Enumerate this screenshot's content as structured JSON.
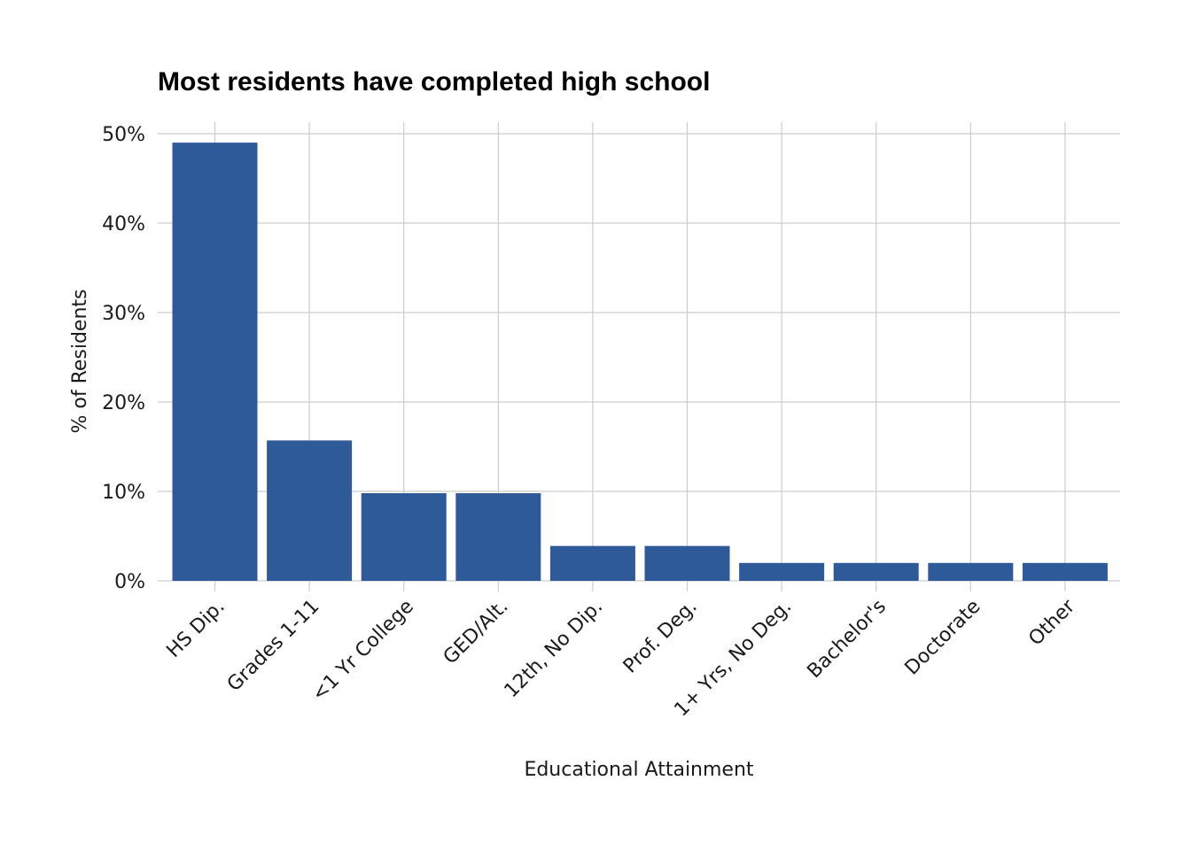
{
  "chart_data": {
    "type": "bar",
    "title": "Most residents have completed high school",
    "xlabel": "Educational Attainment",
    "ylabel": "% of Residents",
    "categories": [
      "HS Dip.",
      "Grades 1-11",
      "<1 Yr College",
      "GED/Alt.",
      "12th, No Dip.",
      "Prof. Deg.",
      "1+ Yrs, No Deg.",
      "Bachelor's",
      "Doctorate",
      "Other"
    ],
    "values": [
      49.0,
      15.7,
      9.8,
      9.8,
      3.9,
      3.9,
      2.0,
      2.0,
      2.0,
      2.0
    ],
    "ylim": [
      0,
      50
    ],
    "yticks": [
      "0%",
      "10%",
      "20%",
      "30%",
      "40%",
      "50%"
    ],
    "grid": true,
    "bar_color": "#2e5a99",
    "grid_color": "#cccccc"
  }
}
